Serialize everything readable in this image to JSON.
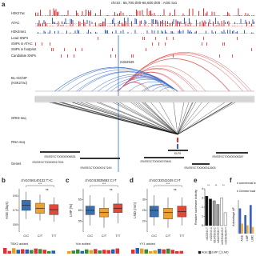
{
  "panel_a": {
    "label": "a",
    "region": "chr10 : 65,700,000-66,600,000 : AGE loci",
    "tracks": [
      "H3K27ac",
      "ATAC",
      "H3K4me1",
      "Lead SNPs",
      "SNPs in ATAC",
      "SNPs in footprint",
      "Candidate SNPs",
      "BL-HiChIP",
      "GRID-seq",
      "RNA-seq",
      "Genes"
    ],
    "hichip_note": "(H3K27ac)",
    "snp": "rs322549",
    "genes": [
      "ENSSSCT00000006834",
      "ENSSSCT00000017924",
      "ENSSSCT00000017169",
      "KLF5",
      "ENSSSCT00000075641",
      "ENSSSCT00000012605",
      "ENSSSCT00000006387"
    ]
  },
  "panel_b": {
    "label": "b",
    "title": "chr10:66140132 T>C",
    "ylabel": "AGE (days)",
    "ylim": [
      140,
      200
    ],
    "yticks": [
      150,
      170,
      190
    ],
    "groups": [
      "C/C",
      "C/T",
      "T/T"
    ],
    "colors": [
      "#3a6fb0",
      "#f0a030",
      "#e0483a"
    ],
    "sig": [
      "***",
      "ns"
    ],
    "motif": "TBX2 added",
    "boxes": [
      {
        "lo": 158,
        "q1": 170,
        "median": 177,
        "q3": 184,
        "hi": 196
      },
      {
        "lo": 156,
        "q1": 166,
        "median": 173,
        "q3": 180,
        "hi": 192
      },
      {
        "lo": 154,
        "q1": 164,
        "median": 171,
        "q3": 178,
        "hi": 188
      }
    ]
  },
  "panel_c": {
    "label": "c",
    "title": "chr10:63835682 C>T",
    "ylabel": "LMP (%)",
    "ylim": [
      50,
      70
    ],
    "yticks": [
      55,
      60,
      65
    ],
    "groups": [
      "C/C",
      "C/T",
      "T/T"
    ],
    "colors": [
      "#3a6fb0",
      "#f0a030",
      "#e0483a"
    ],
    "sig": [
      "***",
      "ns"
    ],
    "motif": "Vdr added",
    "boxes": [
      {
        "lo": 53,
        "q1": 58,
        "median": 60,
        "q3": 62,
        "hi": 67
      },
      {
        "lo": 52,
        "q1": 57,
        "median": 59,
        "q3": 61,
        "hi": 66
      },
      {
        "lo": 54,
        "q1": 59,
        "median": 61,
        "q3": 63,
        "hi": 68
      }
    ]
  },
  "panel_d": {
    "label": "d",
    "title": "chr10:32041045 C>T",
    "ylabel": "LMD (mm)",
    "ylim": [
      15,
      35
    ],
    "yticks": [
      20,
      25,
      30
    ],
    "groups": [
      "C/C",
      "C/T",
      "T/T"
    ],
    "colors": [
      "#3a6fb0",
      "#f0a030",
      "#e0483a"
    ],
    "sig": [
      "***",
      "ns"
    ],
    "motif": "YY1 added",
    "boxes": [
      {
        "lo": 18,
        "q1": 22,
        "median": 25,
        "q3": 27,
        "hi": 32
      },
      {
        "lo": 17,
        "q1": 21,
        "median": 24,
        "q3": 26,
        "hi": 31
      },
      {
        "lo": 18,
        "q1": 22,
        "median": 24.5,
        "q3": 27,
        "hi": 31
      }
    ]
  },
  "panel_e": {
    "label": "e",
    "ylabel": "Relative luciferase Activity",
    "ylim": [
      0,
      4
    ],
    "yticks": [
      0,
      1,
      2,
      3,
      4
    ],
    "categories": [
      "rs322549-T",
      "rs322549-C",
      "rs81453932-C",
      "rs81453932-T",
      "rs323941045-C",
      "rs323941045-T"
    ],
    "values": [
      3.2,
      2.9,
      2.7,
      2.3,
      3.0,
      1.4
    ],
    "colors": [
      "#111111",
      "#111111",
      "#9a9a9a",
      "#9a9a9a",
      "#ffffff",
      "#ffffff"
    ],
    "sig": [
      "**",
      "**",
      "**"
    ],
    "legend": [
      "AGE",
      "LMP",
      "LMD"
    ],
    "legend_colors": [
      "#111111",
      "#9a9a9a",
      "#ffffff"
    ]
  },
  "panel_f": {
    "label": "f",
    "ylabel": "Advantage AF",
    "ylim": [
      0,
      1
    ],
    "categories": [
      "AGE",
      "LMP",
      "LMD"
    ],
    "series": [
      {
        "name": "# commercial lean breeds",
        "color": "#3b5fc0",
        "values": [
          0.75,
          0.55,
          0.85
        ]
      },
      {
        "name": "# Chinese local breeds",
        "color": "#f2b233",
        "values": [
          0.3,
          0.25,
          0.2
        ]
      }
    ]
  }
}
